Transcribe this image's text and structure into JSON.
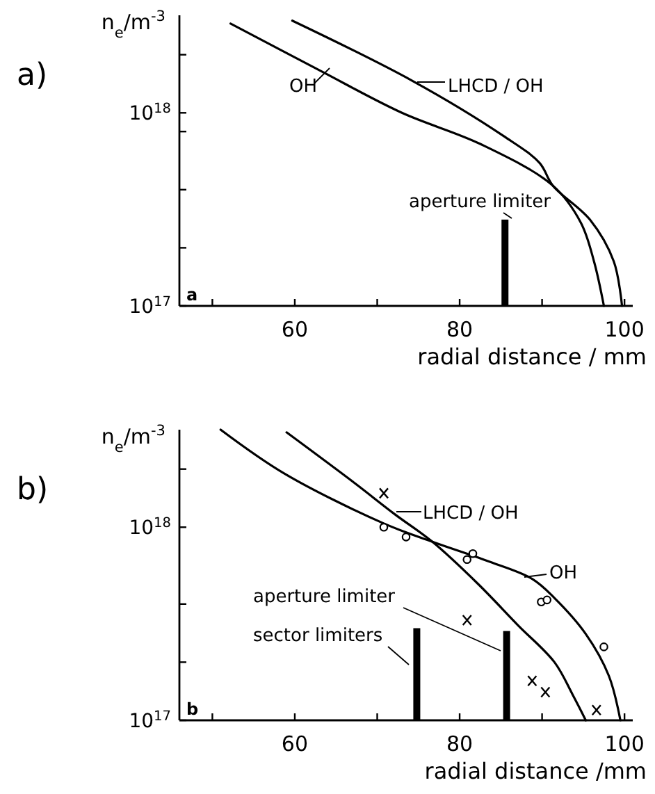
{
  "chart_data": [
    {
      "type": "line",
      "xlabel": "radial distance / mm",
      "ylabel": "n$_{e}$/m$^{-3}$",
      "log": "y",
      "grid": false,
      "legend": "top",
      "line_style": "solid",
      "xlim": [
        46,
        101
      ],
      "xticks": [
        {
          "value": 50,
          "label": null
        },
        60,
        {
          "value": 70,
          "label": null
        },
        80,
        {
          "value": 90,
          "label": null
        },
        100
      ],
      "ylim": [
        1e+17,
        3.2e+18
      ],
      "yticks": [
        {
          "value": 1e+17,
          "label": "10$^{17}$"
        },
        {
          "value": 2e+17,
          "label": null
        },
        {
          "value": 4e+17,
          "label": null
        },
        {
          "value": 8e+17,
          "label": null
        },
        {
          "value": 1e+18,
          "label": "10$^{18}$"
        },
        {
          "value": 2e+18,
          "label": null
        }
      ],
      "annotations": [
        "a)",
        "a"
      ],
      "series": [
        {
          "name": "OH",
          "color": "#000000",
          "x": [
            52.2,
            63,
            73,
            82.5,
            91.3,
            94.7,
            96.3,
            97.5
          ],
          "values": [
            2.9e+18,
            1.66e+18,
            1e+18,
            6.9e+17,
            4.2e+17,
            2.7e+17,
            1.7e+17,
            1e+17
          ]
        },
        {
          "name": "LHCD / OH",
          "color": "#000000",
          "x": [
            59.7,
            74.2,
            85.3,
            89.7,
            91.3,
            95.8,
            98.7,
            99.7
          ],
          "values": [
            3e+18,
            1.47e+18,
            7.6e+17,
            5.5e+17,
            4.2e+17,
            2.8e+17,
            1.7e+17,
            1e+17
          ]
        },
        {
          "name": "aperture limiter",
          "type": "bar",
          "color": "#000000",
          "x": [
            85.5
          ],
          "values": [
            2.8e+17
          ]
        }
      ]
    },
    {
      "type": "line",
      "xlabel": "radial distance /mm",
      "ylabel": "n$_{e}$/m$^{-3}$",
      "log": "y",
      "grid": false,
      "legend": "right",
      "line_style": "solid",
      "xlim": [
        46,
        101
      ],
      "xticks": [
        {
          "value": 50,
          "label": null
        },
        60,
        {
          "value": 70,
          "label": null
        },
        80,
        {
          "value": 90,
          "label": null
        },
        100
      ],
      "ylim": [
        1e+17,
        3.2e+18
      ],
      "yticks": [
        {
          "value": 1e+17,
          "label": "10$^{17}$"
        },
        {
          "value": 2e+17,
          "label": null
        },
        {
          "value": 4e+17,
          "label": null
        },
        {
          "value": 1e+18,
          "label": "10$^{18}$"
        },
        {
          "value": 2e+18,
          "label": null
        }
      ],
      "annotations": [
        "b)",
        "b"
      ],
      "series": [
        {
          "name": "OH",
          "color": "#000000",
          "x": [
            51.0,
            58.7,
            70.7,
            76.7,
            83.3,
            88.8,
            91.5,
            95.3,
            98.1,
            99.5
          ],
          "values": [
            3.2e+18,
            1.9e+18,
            1.05e+18,
            8.4e+17,
            6.7e+17,
            5.4e+17,
            4.3e+17,
            2.8e+17,
            1.7e+17,
            1e+17
          ]
        },
        {
          "name": "LHCD / OH",
          "color": "#000000",
          "x": [
            59.0,
            67.2,
            72.1,
            76.7,
            82.2,
            87.1,
            91.5,
            93.7,
            95.3
          ],
          "values": [
            3.1e+18,
            1.7e+18,
            1.17e+18,
            8.4e+17,
            5.1e+17,
            3.1e+17,
            2e+17,
            1.36e+17,
            1e+17
          ]
        },
        {
          "type": "scatter",
          "marker": "circle",
          "color": "#000000",
          "x": [
            70.8,
            73.5,
            80.9,
            81.6,
            89.9,
            90.6,
            97.5
          ],
          "values": [
            1e+18,
            8.9e+17,
            6.8e+17,
            7.3e+17,
            4.1e+17,
            4.2e+17,
            2.4e+17
          ]
        },
        {
          "type": "scatter",
          "marker": "cross",
          "color": "#000000",
          "x": [
            70.8,
            80.9,
            88.8,
            90.4,
            96.6
          ],
          "values": [
            1.5e+18,
            3.3e+17,
            1.6e+17,
            1.4e+17,
            1.13e+17
          ]
        },
        {
          "name": "sector limiters",
          "type": "bar",
          "color": "#000000",
          "x": [
            74.8
          ],
          "values": [
            3e+17
          ]
        },
        {
          "name": "aperture limiter",
          "type": "bar",
          "color": "#000000",
          "x": [
            85.7
          ],
          "values": [
            2.9e+17
          ]
        }
      ]
    }
  ]
}
